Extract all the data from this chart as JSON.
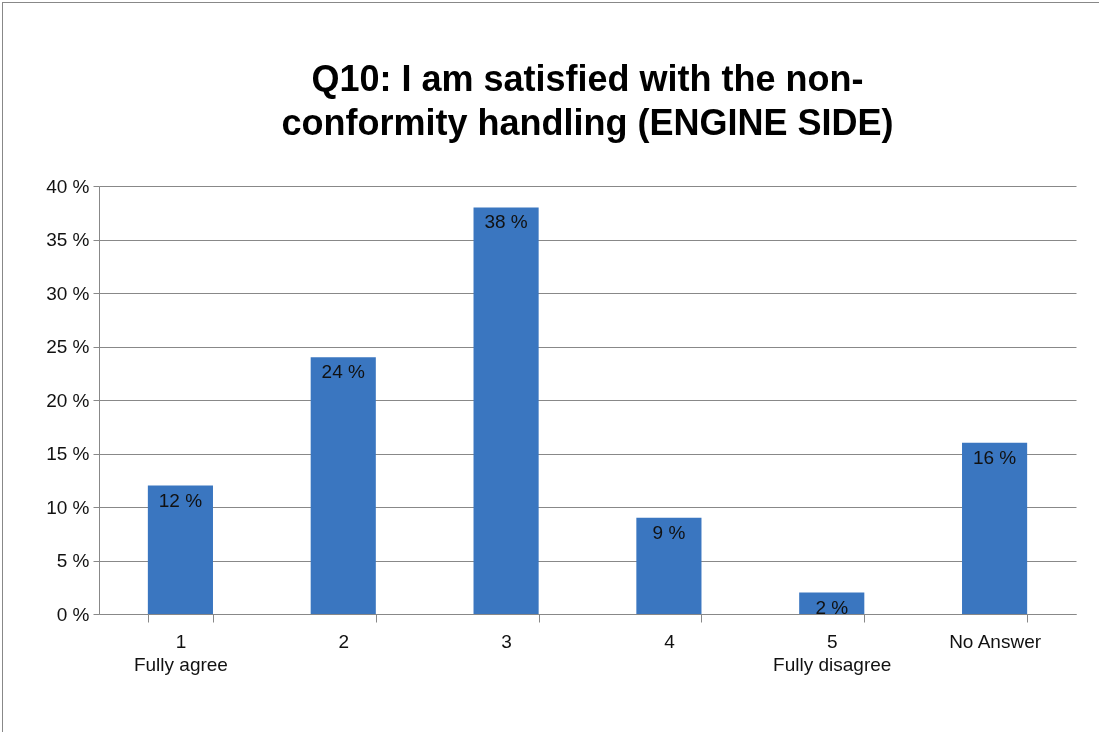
{
  "chart_data": {
    "type": "bar",
    "title": "Q10: I am satisfied with the non-\nconformity handling (ENGINE SIDE)",
    "categories": [
      "1\n\nFully agree",
      "2",
      "3",
      "4",
      "5\n\nFully disagree",
      "No Answer"
    ],
    "values": [
      12,
      24,
      38,
      9,
      2,
      16
    ],
    "color": "#3a76c0",
    "ylim": [
      0,
      40
    ],
    "yticks": [
      {
        "value": 0,
        "label": "0 %"
      },
      {
        "value": 5,
        "label": "5 %"
      },
      {
        "value": 10,
        "label": "10 %"
      },
      {
        "value": 15,
        "label": "15 %"
      },
      {
        "value": 20,
        "label": "20 %"
      },
      {
        "value": 25,
        "label": "25 %"
      },
      {
        "value": 30,
        "label": "30 %"
      },
      {
        "value": 35,
        "label": "35 %"
      },
      {
        "value": 40,
        "label": "40 %"
      }
    ],
    "value_labels": [
      "12 %",
      "24 %",
      "38 %",
      "9 %",
      "2 %",
      "16 %"
    ],
    "grid": "y"
  }
}
